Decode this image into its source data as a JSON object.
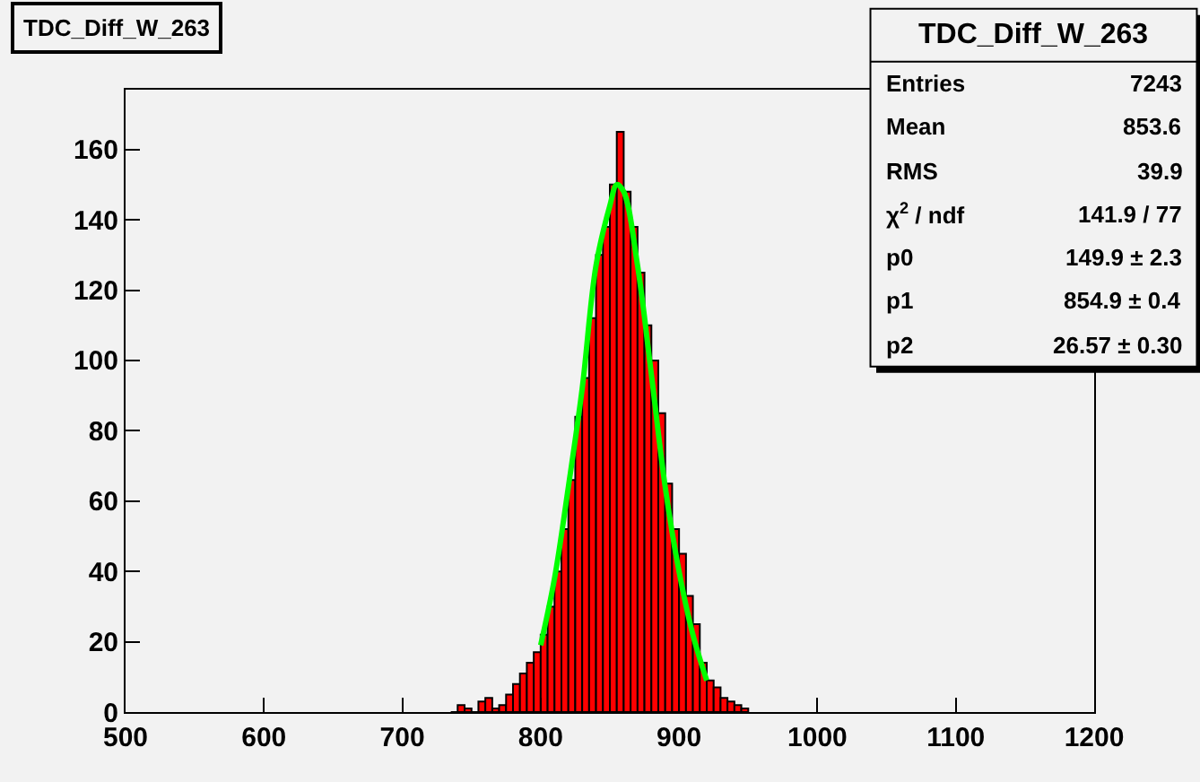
{
  "chart_data": {
    "type": "histogram",
    "title": "TDC_Diff_W_263",
    "bins": [
      735,
      740,
      745,
      750,
      755,
      760,
      765,
      770,
      775,
      780,
      785,
      790,
      795,
      800,
      805,
      810,
      815,
      820,
      825,
      830,
      835,
      840,
      845,
      850,
      855,
      860,
      865,
      870,
      875,
      880,
      885,
      890,
      895,
      900,
      905,
      910,
      915,
      920,
      925,
      930,
      935,
      940,
      945,
      950
    ],
    "values": [
      0,
      2,
      1,
      0,
      3,
      4,
      1,
      2,
      5,
      8,
      11,
      14,
      17,
      22,
      30,
      40,
      52,
      66,
      84,
      95,
      112,
      130,
      138,
      150,
      165,
      148,
      138,
      125,
      110,
      100,
      85,
      65,
      52,
      45,
      33,
      25,
      14,
      9,
      7,
      4,
      3,
      2,
      1
    ],
    "color": "#ff0000",
    "series": [
      {
        "type": "line",
        "color": "#00ff00",
        "x": [
          800,
          810,
          820,
          830,
          840,
          850,
          855,
          860,
          870,
          880,
          890,
          900,
          910,
          920
        ],
        "values": [
          19,
          38,
          64,
          92,
          127,
          144,
          150,
          148,
          127,
          96,
          64,
          40,
          22,
          9
        ]
      }
    ],
    "xlim": [
      500,
      1200
    ],
    "xticks": [
      500,
      600,
      700,
      800,
      900,
      1000,
      1100,
      1200
    ],
    "ylim": [
      0,
      177
    ],
    "yticks": [
      0,
      20,
      40,
      60,
      80,
      100,
      120,
      140,
      160
    ],
    "annotations": [
      "TDC_Diff_W_263",
      "Entries",
      "7243",
      "Mean",
      "853.6",
      "RMS",
      "39.9",
      "χ$^{2}$ / ndf",
      "141.9 / 77",
      "p0",
      "149.9 ± 2.3",
      "p1",
      "854.9 ± 0.4",
      "p2",
      "26.57 ± 0.30"
    ]
  }
}
